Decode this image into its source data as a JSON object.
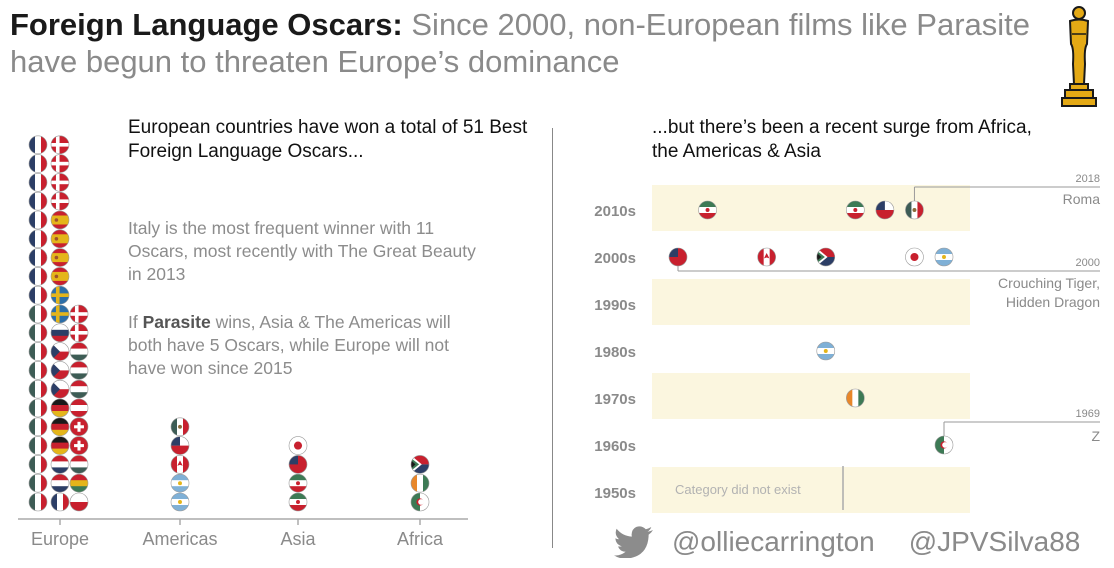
{
  "title": {
    "bold": "Foreign Language Oscars:",
    "rest": " Since 2000, non-European films like Parasite have begun to threaten Europe’s dominance"
  },
  "left_panel": {
    "subtitle": "European countries have won a total of 51 Best Foreign Language Oscars...",
    "note1": "Italy is the most frequent winner with 11 Oscars, most recently with The Great Beauty in 2013",
    "note2_pre": "If ",
    "note2_bold": "Parasite",
    "note2_post": " wins, Asia & The Americas will both have 5 Oscars, while Europe will not have won since 2015"
  },
  "right_panel": {
    "subtitle": "...but there’s been a recent surge from Africa, the Americas & Asia",
    "not_exist": "Category did not exist"
  },
  "footer": {
    "twitter_icon": "twitter-bird-icon",
    "handle1": "@olliecarrington",
    "handle2": "@JPVSilva88"
  },
  "colors": {
    "band": "#fbf6df",
    "axis": "#aaaaaa",
    "italy_green": "#3f5f58",
    "red": "#c8202e",
    "oscar_gold": "#e4a915"
  },
  "chart_data": [
    {
      "type": "bar",
      "title": "European countries have won a total of 51 Best Foreign Language Oscars...",
      "categories": [
        "Europe",
        "Americas",
        "Asia",
        "Africa"
      ],
      "values": [
        51,
        5,
        4,
        3
      ],
      "units": "stacked flag circles, one per Oscar",
      "stacks": {
        "Europe": [
          [
            "it",
            "it",
            "it",
            "it",
            "it",
            "it",
            "it",
            "it",
            "it",
            "it",
            "it",
            "fr",
            "fr",
            "fr",
            "fr",
            "fr",
            "fr",
            "fr",
            "fr",
            "fr"
          ],
          [
            "fr",
            "nl",
            "nl",
            "de",
            "de",
            "de",
            "cz",
            "cz",
            "cz",
            "ru",
            "se",
            "se",
            "es",
            "es",
            "es",
            "es",
            "dk",
            "dk",
            "dk",
            "dk"
          ],
          [
            "pl",
            "bo",
            "hu",
            "ch",
            "ch",
            "at",
            "hu",
            "hu",
            "hu",
            "dk",
            "dk"
          ]
        ],
        "Americas": [
          "ar",
          "ar",
          "ca",
          "cl",
          "mx"
        ],
        "Asia": [
          "ir",
          "ir",
          "tw",
          "jp"
        ],
        "Africa": [
          "dz",
          "ci",
          "za"
        ]
      }
    },
    {
      "type": "scatter",
      "title": "...but there’s been a recent surge from Africa, the Americas & Asia",
      "categories": [
        "2010s",
        "2000s",
        "1990s",
        "1980s",
        "1970s",
        "1960s",
        "1950s"
      ],
      "points": [
        {
          "decade": "2010s",
          "year": 2011,
          "country": "ir"
        },
        {
          "decade": "2010s",
          "year": 2016,
          "country": "ir"
        },
        {
          "decade": "2010s",
          "year": 2017,
          "country": "cl"
        },
        {
          "decade": "2010s",
          "year": 2018,
          "country": "mx",
          "label": "Roma"
        },
        {
          "decade": "2000s",
          "year": 2000,
          "country": "tw",
          "label": "Crouching Tiger, Hidden Dragon"
        },
        {
          "decade": "2000s",
          "year": 2003,
          "country": "ca"
        },
        {
          "decade": "2000s",
          "year": 2005,
          "country": "za"
        },
        {
          "decade": "2000s",
          "year": 2008,
          "country": "jp"
        },
        {
          "decade": "2000s",
          "year": 2009,
          "country": "ar"
        },
        {
          "decade": "1980s",
          "year": 1985,
          "country": "ar"
        },
        {
          "decade": "1970s",
          "year": 1976,
          "country": "ci"
        },
        {
          "decade": "1960s",
          "year": 1969,
          "country": "dz",
          "label": "Z"
        }
      ],
      "annotations": [
        {
          "year": "2018",
          "film": "Roma"
        },
        {
          "year": "2000",
          "film": "Crouching Tiger, Hidden Dragon"
        },
        {
          "year": "1969",
          "film": "Z"
        }
      ],
      "shaded_rows": [
        "2010s",
        "1990s",
        "1970s",
        "1950s"
      ],
      "x_range_years": [
        0,
        9
      ]
    }
  ]
}
